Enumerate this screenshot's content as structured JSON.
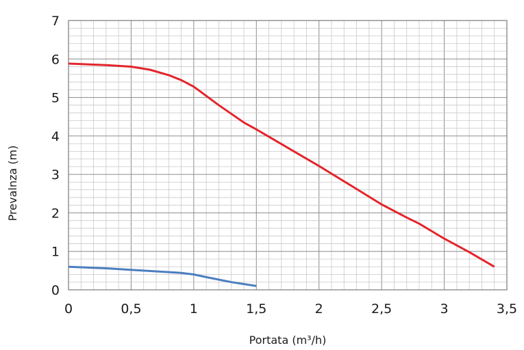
{
  "chart_data": {
    "type": "line",
    "xlabel": "Portata (m³/h)",
    "ylabel": "Prevalnza (m)",
    "xlim": [
      0,
      3.5
    ],
    "ylim": [
      0,
      7
    ],
    "x_ticks": [
      "0",
      "0,5",
      "1",
      "1,5",
      "2",
      "2,5",
      "3",
      "3,5"
    ],
    "y_ticks": [
      "0",
      "1",
      "2",
      "3",
      "4",
      "5",
      "6",
      "7"
    ],
    "grid": true,
    "series": [
      {
        "color": "#e3252b",
        "points": [
          [
            0,
            5.88
          ],
          [
            0.3,
            5.84
          ],
          [
            0.5,
            5.8
          ],
          [
            0.65,
            5.72
          ],
          [
            0.8,
            5.58
          ],
          [
            0.9,
            5.45
          ],
          [
            1.0,
            5.28
          ],
          [
            1.2,
            4.8
          ],
          [
            1.4,
            4.35
          ],
          [
            1.5,
            4.17
          ],
          [
            1.8,
            3.6
          ],
          [
            2.0,
            3.22
          ],
          [
            2.3,
            2.62
          ],
          [
            2.5,
            2.22
          ],
          [
            2.7,
            1.88
          ],
          [
            2.8,
            1.72
          ],
          [
            3.0,
            1.33
          ],
          [
            3.2,
            0.98
          ],
          [
            3.4,
            0.6
          ]
        ]
      },
      {
        "color": "#4a7ebf",
        "points": [
          [
            0,
            0.6
          ],
          [
            0.3,
            0.56
          ],
          [
            0.6,
            0.5
          ],
          [
            0.9,
            0.44
          ],
          [
            1.0,
            0.4
          ],
          [
            1.1,
            0.33
          ],
          [
            1.3,
            0.2
          ],
          [
            1.5,
            0.1
          ]
        ]
      }
    ]
  }
}
